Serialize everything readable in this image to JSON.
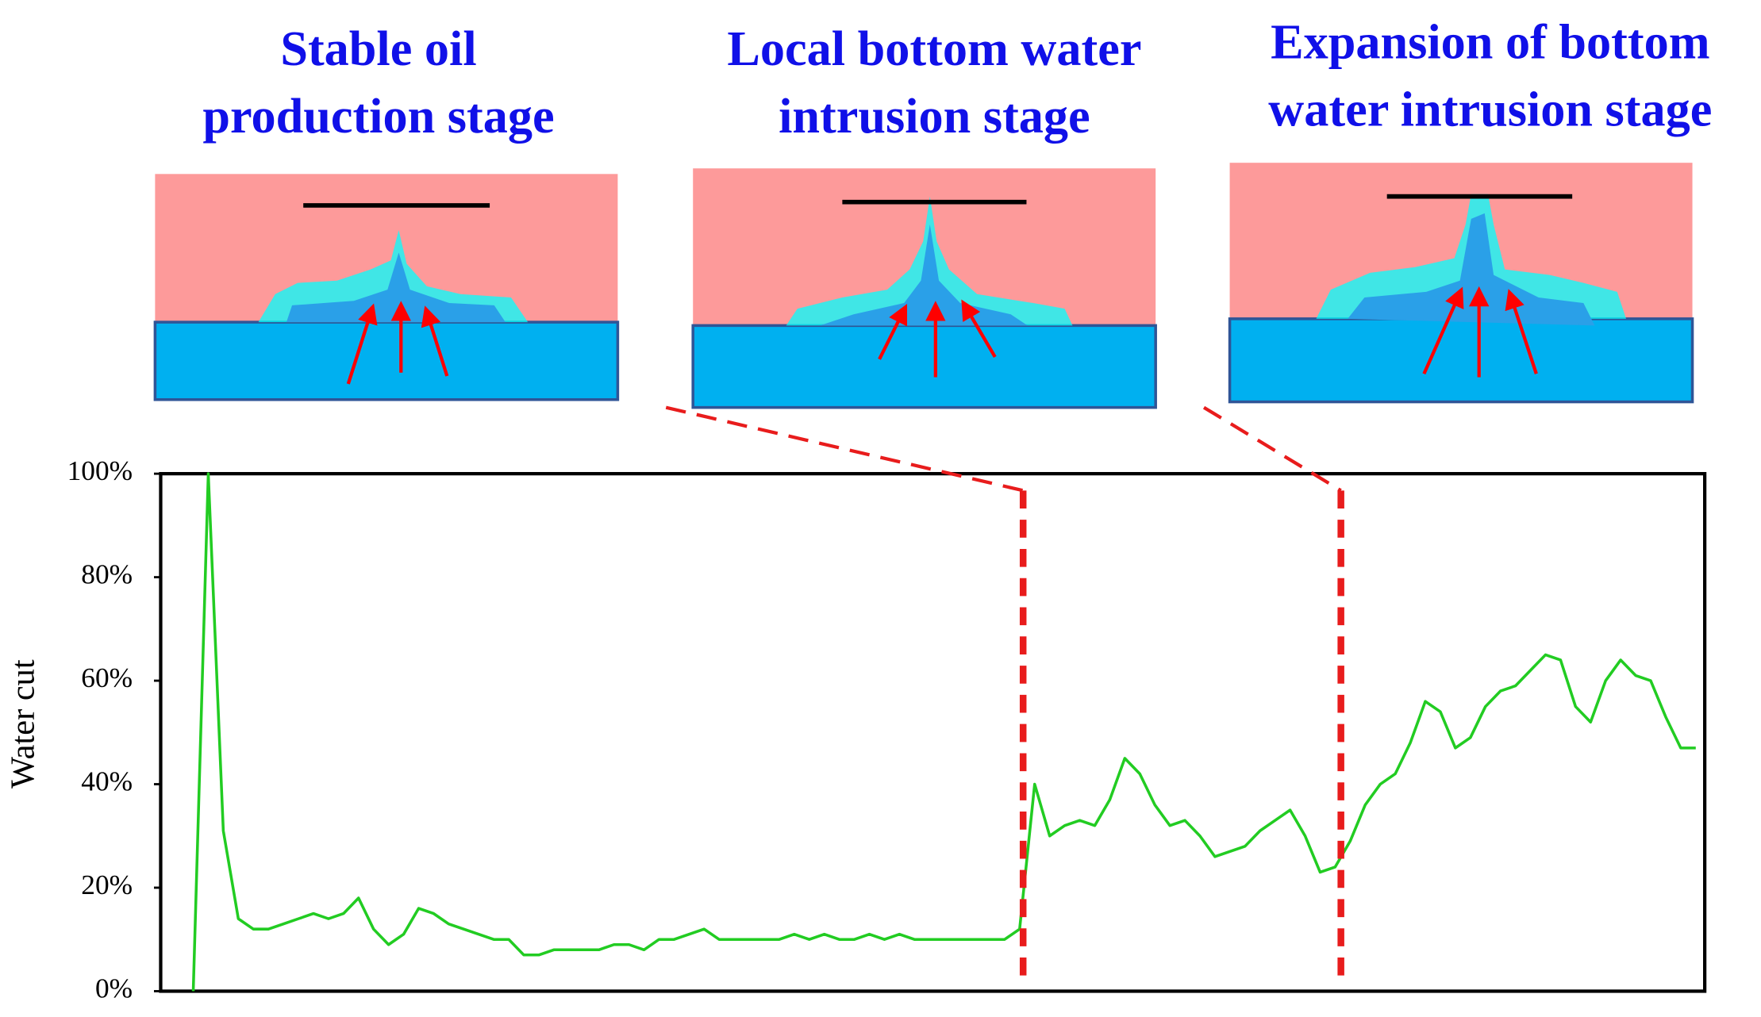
{
  "chart_data": {
    "type": "line",
    "annotations": [
      [
        "Stable oil",
        "production stage"
      ],
      [
        "Local bottom water",
        "intrusion stage"
      ],
      [
        "Expansion of bottom",
        "water intrusion stage"
      ]
    ],
    "ylabel": "Water cut",
    "color": "#22cc22",
    "values": [
      0,
      100,
      31,
      14,
      12,
      12,
      13,
      14,
      15,
      14,
      15,
      18,
      12,
      9,
      11,
      16,
      15,
      13,
      12,
      11,
      10,
      10,
      7,
      7,
      8,
      8,
      8,
      8,
      9,
      9,
      8,
      10,
      10,
      11,
      12,
      10,
      10,
      10,
      10,
      10,
      11,
      10,
      11,
      10,
      10,
      11,
      10,
      11,
      10,
      10,
      10,
      10,
      10,
      10,
      10,
      12,
      40,
      30,
      32,
      33,
      32,
      37,
      45,
      42,
      36,
      32,
      33,
      30,
      26,
      27,
      28,
      31,
      33,
      35,
      30,
      23,
      24,
      29,
      36,
      40,
      42,
      48,
      56,
      54,
      47,
      49,
      55,
      58,
      59,
      62,
      65,
      64,
      55,
      52,
      60,
      64,
      61,
      60,
      53,
      47,
      47
    ],
    "ylim": [
      0,
      100
    ],
    "yticks": [
      {
        "value": 0,
        "label": "0%"
      },
      {
        "value": 20,
        "label": "20%"
      },
      {
        "value": 40,
        "label": "40%"
      },
      {
        "value": 60,
        "label": "60%"
      },
      {
        "value": 80,
        "label": "80%"
      },
      {
        "value": 100,
        "label": "100%"
      }
    ],
    "grid": false
  }
}
